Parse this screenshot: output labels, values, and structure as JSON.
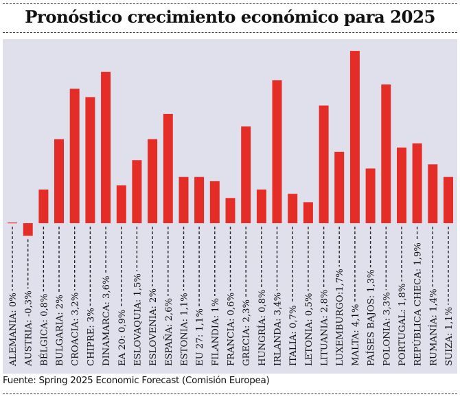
{
  "chart_data": {
    "type": "bar",
    "title": "Pronóstico crecimiento económico para 2025",
    "xlabel": "",
    "ylabel": "",
    "ylim": [
      -0.3,
      4.1
    ],
    "grid": false,
    "legend": "none",
    "bar_color": "#e52d27",
    "background_color": "#dfe0ec",
    "categories": [
      "ALEMANIA",
      "AUSTRIA",
      "BÉLGICA",
      "BULGARIA",
      "CROACIA",
      "CHIPRE",
      "DINAMARCA",
      "EA 20",
      "ESLOVAQUIA",
      "ESLOVENIA",
      "ESPAÑA",
      "ESTONIA",
      "EU 27",
      "FILANDIA",
      "FRANCIA",
      "GRECIA",
      "HUNGRÍA",
      "IRLANDA",
      "ITALIA",
      "LETONIA",
      "LITUANIA",
      "LUXEMBURGO",
      "MALTA",
      "PAÍSES BAJOS",
      "POLONIA",
      "PORTUGAL",
      "REPÚBLICA CHECA",
      "RUMANÍA",
      "SUIZA"
    ],
    "values": [
      0,
      -0.3,
      0.8,
      2,
      3.2,
      3,
      3.6,
      0.9,
      1.5,
      2,
      2.6,
      1.1,
      1.1,
      1,
      0.6,
      2.3,
      0.8,
      3.4,
      0.7,
      0.5,
      2.8,
      1.7,
      4.1,
      1.3,
      3.3,
      1.8,
      1.9,
      1.4,
      1.1
    ],
    "tick_labels": [
      "ALEMANIA: 0%",
      "AUSTRIA: -0,3%",
      "BÉLGICA: 0,8%",
      "BULGARIA: 2%",
      "CROACIA: 3,2%",
      "CHIPRE: 3%",
      "DINAMARCA: 3,6%",
      "EA 20: 0,9%",
      "ESLOVAQUIA: 1,5%",
      "ESLOVENIA: 2%",
      "ESPAÑA: 2,6%",
      "ESTONIA: 1,1%",
      "EU 27: 1,1%",
      "FILANDIA: 1%",
      "FRANCIA: 0,6%",
      "GRECIA: 2,3%",
      "HUNGRÍA: 0,8%",
      "IRLANDA: 3,4%",
      "ITALIA: 0,7%",
      "LETONIA: 0,5%",
      "LITUANIA: 2,8%",
      "LUXEMBURGO:1,7%",
      "MALTA: 4,1%",
      "PAÍSES BAJOS: 1,3%",
      "POLONIA: 3,3%",
      "PORTUGAL: 1,8%",
      "REPÚBLICA CHECA: 1,9%",
      "RUMANÍA: 1,4%",
      "SUIZA: 1,1%"
    ],
    "source": "Fuente: Spring 2025 Economic Forecast (Comisión Europea)"
  }
}
